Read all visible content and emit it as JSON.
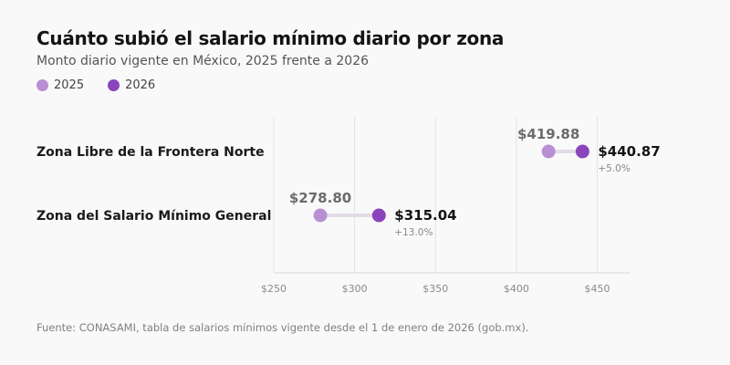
{
  "title": "Cuánto subió el salario mínimo diario por zona",
  "subtitle": "Monto diario vigente en México, 2025 frente a 2026",
  "legend": [
    {
      "label": "2025",
      "color": "#b98fd3"
    },
    {
      "label": "2026",
      "color": "#8a45bd"
    }
  ],
  "source": "Fuente: CONASAMI, tabla de salarios mínimos vigente desde el 1 de enero de 2026 (gob.mx).",
  "chart_data": {
    "type": "dumbbell",
    "categories": [
      "Zona Libre de la Frontera Norte",
      "Zona del Salario Mínimo General"
    ],
    "series": [
      {
        "name": "2025",
        "values": [
          419.88,
          278.8
        ],
        "color": "#b98fd3"
      },
      {
        "name": "2026",
        "values": [
          440.87,
          315.04
        ],
        "color": "#8a45bd"
      }
    ],
    "value_labels_2025": [
      "$419.88",
      "$278.80"
    ],
    "value_labels_2026": [
      "$440.87",
      "$315.04"
    ],
    "change_labels": [
      "+5.0%",
      "+13.0%"
    ],
    "xlim": [
      250,
      470
    ],
    "x_ticks": [
      250,
      300,
      350,
      400,
      450
    ],
    "x_tick_labels": [
      "$250",
      "$300",
      "$350",
      "$400",
      "$450"
    ],
    "grid": true
  }
}
